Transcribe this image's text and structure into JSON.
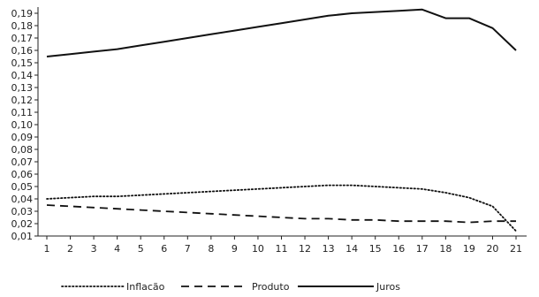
{
  "chart_data": {
    "type": "line",
    "x": [
      1,
      2,
      3,
      4,
      5,
      6,
      7,
      8,
      9,
      10,
      11,
      12,
      13,
      14,
      15,
      16,
      17,
      18,
      19,
      20,
      21
    ],
    "y_ticks": [
      "0,01",
      "0,02",
      "0,03",
      "0,04",
      "0,05",
      "0,06",
      "0,07",
      "0,08",
      "0,09",
      "0,10",
      "0,11",
      "0,12",
      "0,13",
      "0,14",
      "0,15",
      "0,16",
      "0,17",
      "0,18",
      "0,19"
    ],
    "ylim": [
      0.01,
      0.195
    ],
    "grid": false,
    "legend_position": "bottom",
    "series": [
      {
        "name": "Inflacão",
        "style": "dotted",
        "color": "#111111",
        "values": [
          0.04,
          0.041,
          0.042,
          0.042,
          0.043,
          0.044,
          0.045,
          0.046,
          0.047,
          0.048,
          0.049,
          0.05,
          0.051,
          0.051,
          0.05,
          0.049,
          0.048,
          0.045,
          0.041,
          0.034,
          0.014
        ]
      },
      {
        "name": "Produto",
        "style": "dashed",
        "color": "#111111",
        "values": [
          0.035,
          0.034,
          0.033,
          0.032,
          0.031,
          0.03,
          0.029,
          0.028,
          0.027,
          0.026,
          0.025,
          0.024,
          0.024,
          0.023,
          0.023,
          0.022,
          0.022,
          0.022,
          0.021,
          0.022,
          0.022
        ]
      },
      {
        "name": "Juros",
        "style": "solid",
        "color": "#111111",
        "values": [
          0.155,
          0.157,
          0.159,
          0.161,
          0.164,
          0.167,
          0.17,
          0.173,
          0.176,
          0.179,
          0.182,
          0.185,
          0.188,
          0.19,
          0.191,
          0.192,
          0.193,
          0.186,
          0.186,
          0.178,
          0.16
        ]
      }
    ]
  }
}
